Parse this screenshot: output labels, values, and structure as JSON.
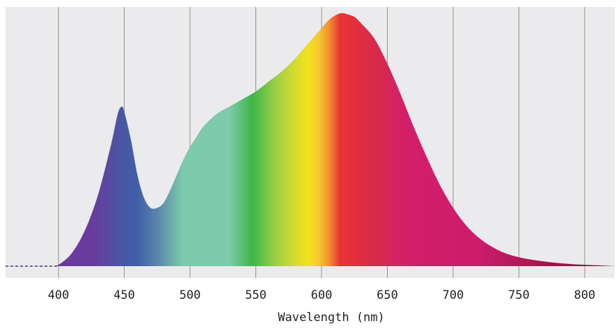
{
  "chart_data": {
    "type": "area",
    "title": "",
    "xlabel": "Wavelength (nm)",
    "ylabel": "",
    "xlim": [
      360,
      825
    ],
    "ylim": [
      0,
      1
    ],
    "grid": true,
    "legend": "none",
    "xticks": [
      400,
      450,
      500,
      550,
      600,
      650,
      700,
      750,
      800
    ],
    "xtick_labels": [
      "400",
      "450",
      "500",
      "550",
      "600",
      "650",
      "700",
      "750",
      "800"
    ],
    "series": [
      {
        "x": [
          360,
          380,
          395,
          400,
          410,
          420,
          430,
          440,
          445,
          448,
          450,
          455,
          460,
          465,
          470,
          475,
          480,
          485,
          490,
          495,
          500,
          505,
          510,
          520,
          530,
          540,
          550,
          560,
          570,
          580,
          590,
          600,
          605,
          610,
          615,
          620,
          625,
          630,
          640,
          650,
          660,
          670,
          680,
          690,
          700,
          710,
          720,
          730,
          740,
          750,
          760,
          770,
          780,
          790,
          800,
          810,
          825
        ],
        "y": [
          0.0,
          0.0,
          0.0,
          0.005,
          0.05,
          0.14,
          0.28,
          0.48,
          0.6,
          0.63,
          0.61,
          0.5,
          0.36,
          0.27,
          0.23,
          0.23,
          0.25,
          0.3,
          0.36,
          0.42,
          0.47,
          0.51,
          0.55,
          0.6,
          0.63,
          0.66,
          0.69,
          0.73,
          0.77,
          0.82,
          0.88,
          0.94,
          0.97,
          0.99,
          1.0,
          0.995,
          0.985,
          0.96,
          0.9,
          0.8,
          0.68,
          0.55,
          0.43,
          0.32,
          0.23,
          0.16,
          0.11,
          0.075,
          0.05,
          0.035,
          0.025,
          0.018,
          0.012,
          0.008,
          0.005,
          0.003,
          0.0
        ]
      }
    ],
    "spectrum_colors": [
      {
        "nm": 400,
        "color": "#6a3b9c"
      },
      {
        "nm": 425,
        "color": "#6a3b9c"
      },
      {
        "nm": 448,
        "color": "#4a56a6"
      },
      {
        "nm": 460,
        "color": "#3f5fa8"
      },
      {
        "nm": 475,
        "color": "#5a85a9"
      },
      {
        "nm": 495,
        "color": "#7dcbac"
      },
      {
        "nm": 530,
        "color": "#7dcbac"
      },
      {
        "nm": 547,
        "color": "#3db549"
      },
      {
        "nm": 565,
        "color": "#9ccf43"
      },
      {
        "nm": 580,
        "color": "#d6dc2f"
      },
      {
        "nm": 590,
        "color": "#f2e21d"
      },
      {
        "nm": 598,
        "color": "#f6c630"
      },
      {
        "nm": 606,
        "color": "#f08e30"
      },
      {
        "nm": 614,
        "color": "#ea3236"
      },
      {
        "nm": 640,
        "color": "#d92a4a"
      },
      {
        "nm": 665,
        "color": "#d41e6a"
      },
      {
        "nm": 720,
        "color": "#cc1c6a"
      },
      {
        "nm": 780,
        "color": "#9b1547"
      },
      {
        "nm": 825,
        "color": "#7a1234"
      }
    ],
    "colors": {
      "plot_background": "#ebebed",
      "grid": "#8f8f8f",
      "baseline": "#3a3a7a"
    }
  }
}
